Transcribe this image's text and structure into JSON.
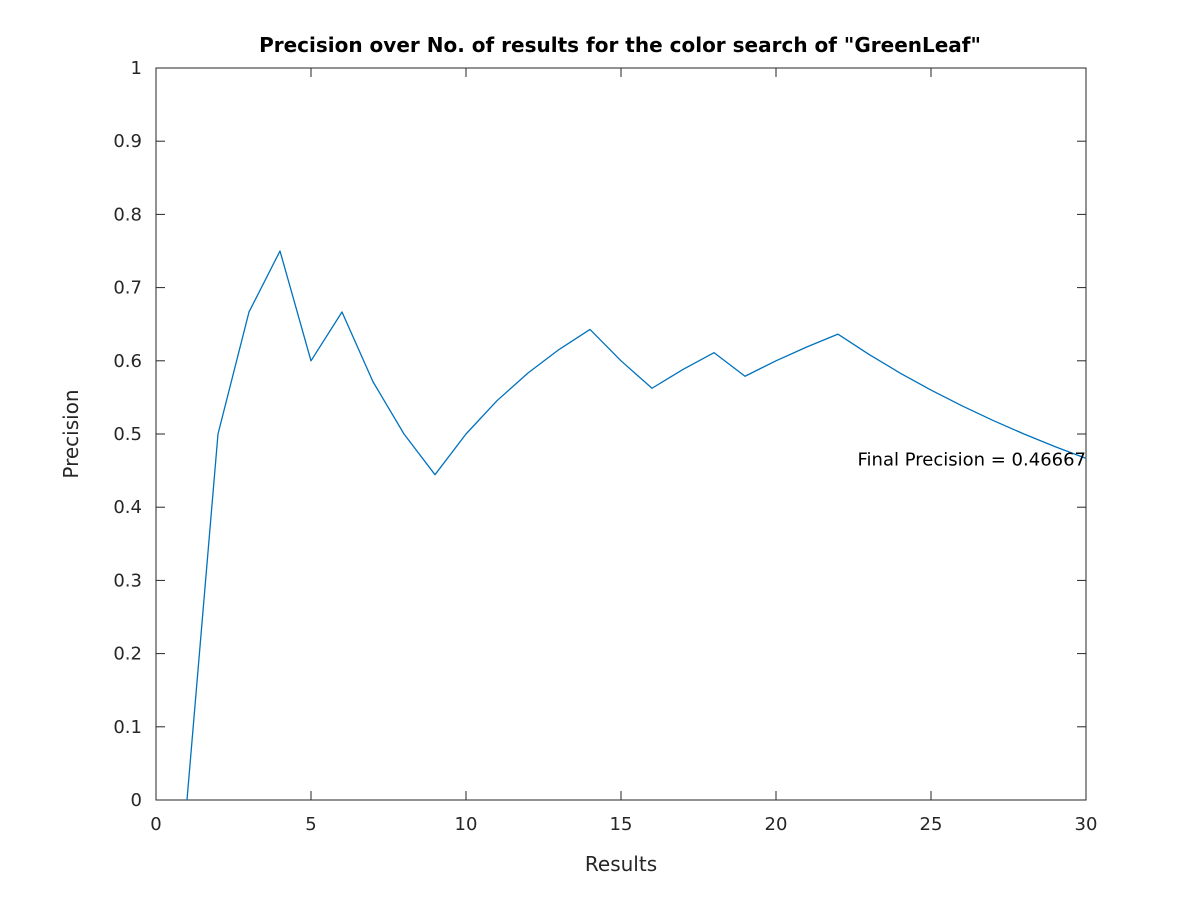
{
  "chart_data": {
    "type": "line",
    "title": "Precision over No. of results for the color search of \"GreenLeaf\"",
    "xlabel": "Results",
    "ylabel": "Precision",
    "xlim": [
      0,
      30
    ],
    "ylim": [
      0,
      1
    ],
    "xticks": [
      0,
      5,
      10,
      15,
      20,
      25,
      30
    ],
    "yticks": [
      0,
      0.1,
      0.2,
      0.3,
      0.4,
      0.5,
      0.6,
      0.7,
      0.8,
      0.9,
      1
    ],
    "xtick_labels": [
      "0",
      "5",
      "10",
      "15",
      "20",
      "25",
      "30"
    ],
    "ytick_labels": [
      "0",
      "0.1",
      "0.2",
      "0.3",
      "0.4",
      "0.5",
      "0.6",
      "0.7",
      "0.8",
      "0.9",
      "1"
    ],
    "grid": false,
    "series": [
      {
        "color": "#0072bd",
        "x": [
          1,
          2,
          3,
          4,
          5,
          6,
          7,
          8,
          9,
          10,
          11,
          12,
          13,
          14,
          15,
          16,
          17,
          18,
          19,
          20,
          21,
          22,
          23,
          24,
          25,
          26,
          27,
          28,
          29,
          30
        ],
        "y": [
          0,
          0.5,
          0.6667,
          0.75,
          0.6,
          0.6667,
          0.5714,
          0.5,
          0.4444,
          0.5,
          0.5455,
          0.5833,
          0.6154,
          0.6429,
          0.6,
          0.5625,
          0.5882,
          0.6111,
          0.5789,
          0.6,
          0.619,
          0.6364,
          0.6087,
          0.5833,
          0.56,
          0.5385,
          0.5185,
          0.5,
          0.4828,
          0.4667
        ]
      }
    ],
    "annotation": {
      "text": "Final Precision = 0.46667",
      "x": 30,
      "y": 0.4667
    }
  }
}
